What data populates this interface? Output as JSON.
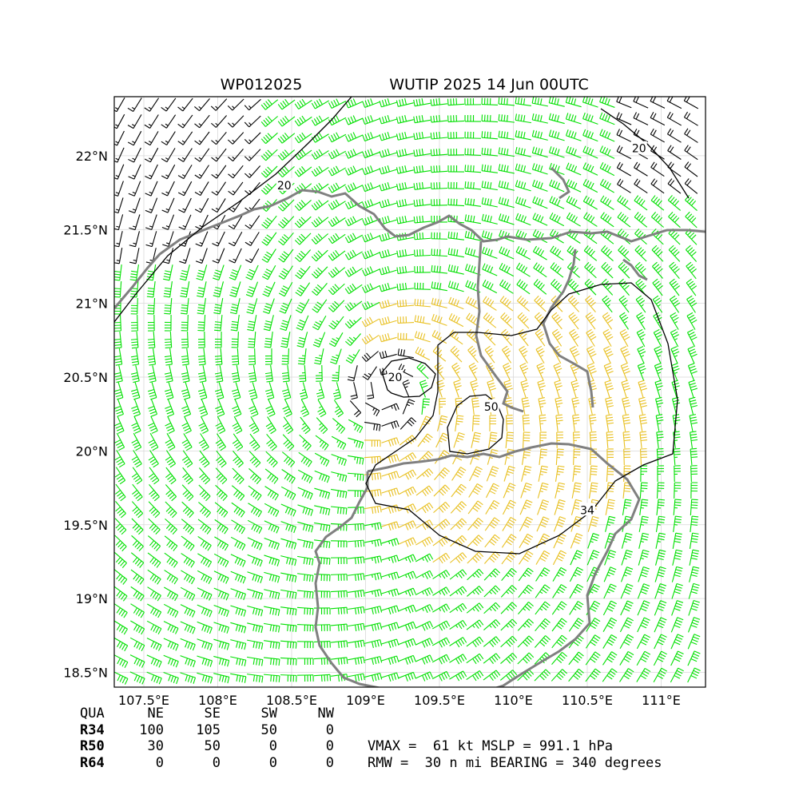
{
  "title_left": "WP012025",
  "title_right": "WUTIP 2025 14 Jun 00UTC",
  "chart_data": {
    "type": "wind-barb map",
    "xlim": [
      107.3,
      111.3
    ],
    "ylim": [
      18.4,
      22.4
    ],
    "x_ticks": [
      {
        "value": 107.5,
        "label": "107.5°E"
      },
      {
        "value": 108.0,
        "label": "108°E"
      },
      {
        "value": 108.5,
        "label": "108.5°E"
      },
      {
        "value": 109.0,
        "label": "109°E"
      },
      {
        "value": 109.5,
        "label": "109.5°E"
      },
      {
        "value": 110.0,
        "label": "110°E"
      },
      {
        "value": 110.5,
        "label": "110.5°E"
      },
      {
        "value": 111.0,
        "label": "111°E"
      }
    ],
    "y_ticks": [
      {
        "value": 18.5,
        "label": "18.5°N"
      },
      {
        "value": 19.0,
        "label": "19°N"
      },
      {
        "value": 19.5,
        "label": "19.5°N"
      },
      {
        "value": 20.0,
        "label": "20°N"
      },
      {
        "value": 20.5,
        "label": "20.5°N"
      },
      {
        "value": 21.0,
        "label": "21°N"
      },
      {
        "value": 21.5,
        "label": "21.5°N"
      },
      {
        "value": 22.0,
        "label": "22°N"
      }
    ],
    "grid": true,
    "storm_center": {
      "lon": 109.15,
      "lat": 20.4
    },
    "wind_colors": {
      "lt_34": "#000000",
      "34_50": "#00e000",
      "50_64": "#e8c020",
      "ge_64": "#ff7000"
    },
    "contour_color": "#000000",
    "coast_color": "#808080",
    "contour_labels": [
      {
        "text": "20",
        "lon": 108.45,
        "lat": 21.8
      },
      {
        "text": "20",
        "lon": 110.85,
        "lat": 22.05
      },
      {
        "text": "20",
        "lon": 109.2,
        "lat": 20.5
      },
      {
        "text": "50",
        "lon": 109.85,
        "lat": 20.3
      },
      {
        "text": "34",
        "lon": 110.5,
        "lat": 19.6
      }
    ]
  },
  "radii_table": {
    "header": [
      "QUA",
      "NE",
      "SE",
      "SW",
      "NW"
    ],
    "rows": [
      {
        "label": "R34",
        "values": [
          "100",
          "105",
          "50",
          "0"
        ]
      },
      {
        "label": "R50",
        "values": [
          "30",
          "50",
          "0",
          "0"
        ]
      },
      {
        "label": "R64",
        "values": [
          "0",
          "0",
          "0",
          "0"
        ]
      }
    ]
  },
  "summary_line1": "VMAX =  61 kt MSLP = 991.1 hPa",
  "summary_line2": "RMW =  30 n mi BEARING = 340 degrees"
}
